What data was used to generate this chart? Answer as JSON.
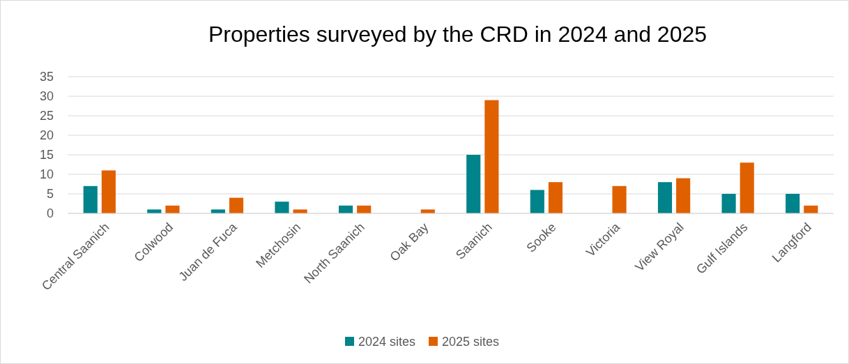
{
  "chart_data": {
    "type": "bar",
    "title": "Properties surveyed by the CRD in 2024 and 2025",
    "categories": [
      "Central Saanich",
      "Colwood",
      "Juan de Fuca",
      "Metchosin",
      "North Saanich",
      "Oak Bay",
      "Saanich",
      "Sooke",
      "Victoria",
      "View Royal",
      "Gulf Islands",
      "Langford"
    ],
    "series": [
      {
        "name": "2024 sites",
        "color": "#00838a",
        "values": [
          7,
          1,
          1,
          3,
          2,
          0,
          15,
          6,
          0,
          8,
          5,
          5
        ]
      },
      {
        "name": "2025 sites",
        "color": "#e06000",
        "values": [
          11,
          2,
          4,
          1,
          2,
          1,
          29,
          8,
          7,
          9,
          13,
          2
        ]
      }
    ],
    "ylim": [
      0,
      35
    ],
    "yticks": [
      0,
      5,
      10,
      15,
      20,
      25,
      30,
      35
    ],
    "grid": "y",
    "legend": "bottom"
  }
}
